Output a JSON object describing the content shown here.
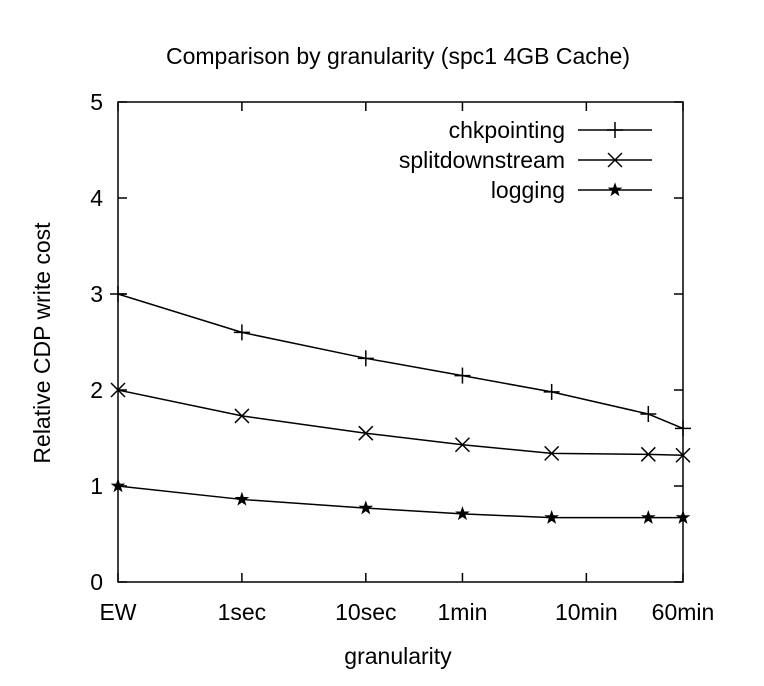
{
  "chart_data": {
    "type": "line",
    "title": "Comparison by granularity (spc1 4GB Cache)",
    "xlabel": "granularity",
    "ylabel": "Relative CDP write cost",
    "ylim": [
      0,
      5
    ],
    "yticks": [
      0,
      1,
      2,
      3,
      4,
      5
    ],
    "xticks": [
      {
        "label": "EW",
        "x": 0
      },
      {
        "label": "1sec",
        "x": 1
      },
      {
        "label": "10sec",
        "x": 2
      },
      {
        "label": "1min",
        "x": 2.78
      },
      {
        "label": "10min",
        "x": 3.78
      },
      {
        "label": "60min",
        "x": 4.56
      }
    ],
    "xlim": [
      0,
      4.56
    ],
    "grid": false,
    "legend_position": "top-right",
    "series": [
      {
        "name": "chkpointing",
        "marker": "plus",
        "x": [
          0,
          1,
          2,
          2.78,
          3.5,
          4.28,
          4.56
        ],
        "values": [
          3.0,
          2.6,
          2.33,
          2.15,
          1.98,
          1.75,
          1.6
        ]
      },
      {
        "name": "splitdownstream",
        "marker": "cross",
        "x": [
          0,
          1,
          2,
          2.78,
          3.5,
          4.28,
          4.56
        ],
        "values": [
          2.0,
          1.73,
          1.55,
          1.43,
          1.34,
          1.33,
          1.32
        ]
      },
      {
        "name": "logging",
        "marker": "star",
        "x": [
          0,
          1,
          2,
          2.78,
          3.5,
          4.28,
          4.56
        ],
        "values": [
          1.0,
          0.86,
          0.77,
          0.71,
          0.67,
          0.67,
          0.67
        ]
      }
    ]
  }
}
